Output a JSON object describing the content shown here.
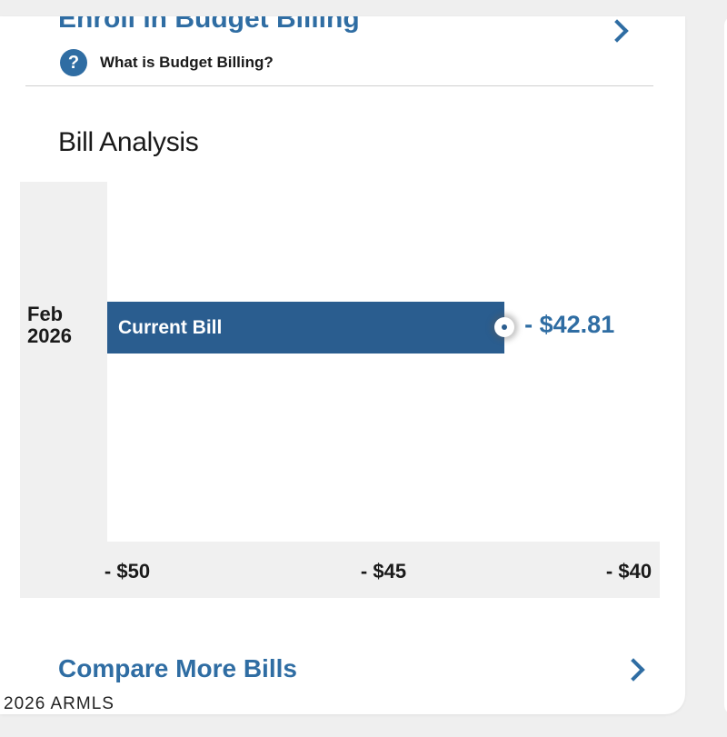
{
  "budget_billing": {
    "enroll_label": "Enroll in Budget Billing",
    "help_text": "What is Budget Billing?",
    "help_icon": "question-circle-icon"
  },
  "bill_analysis": {
    "title": "Bill Analysis",
    "compare_label": "Compare More Bills"
  },
  "chart_data": {
    "type": "bar",
    "orientation": "horizontal",
    "categories": [
      "Feb\n2026"
    ],
    "series": [
      {
        "name": "Current Bill",
        "values": [
          -42.81
        ]
      }
    ],
    "value_labels": [
      "- $42.81"
    ],
    "xlim": [
      -50,
      -40
    ],
    "xticks": [
      -50,
      -45,
      -40
    ],
    "xtick_labels": [
      "- $50",
      "- $45",
      "- $40"
    ],
    "title": "",
    "xlabel": "",
    "ylabel": "",
    "grid": false,
    "bar_color": "#2a5d8f"
  },
  "footer": {
    "text": "2026 ARMLS"
  },
  "colors": {
    "accent": "#2f6da3",
    "bar": "#2a5d8f"
  }
}
